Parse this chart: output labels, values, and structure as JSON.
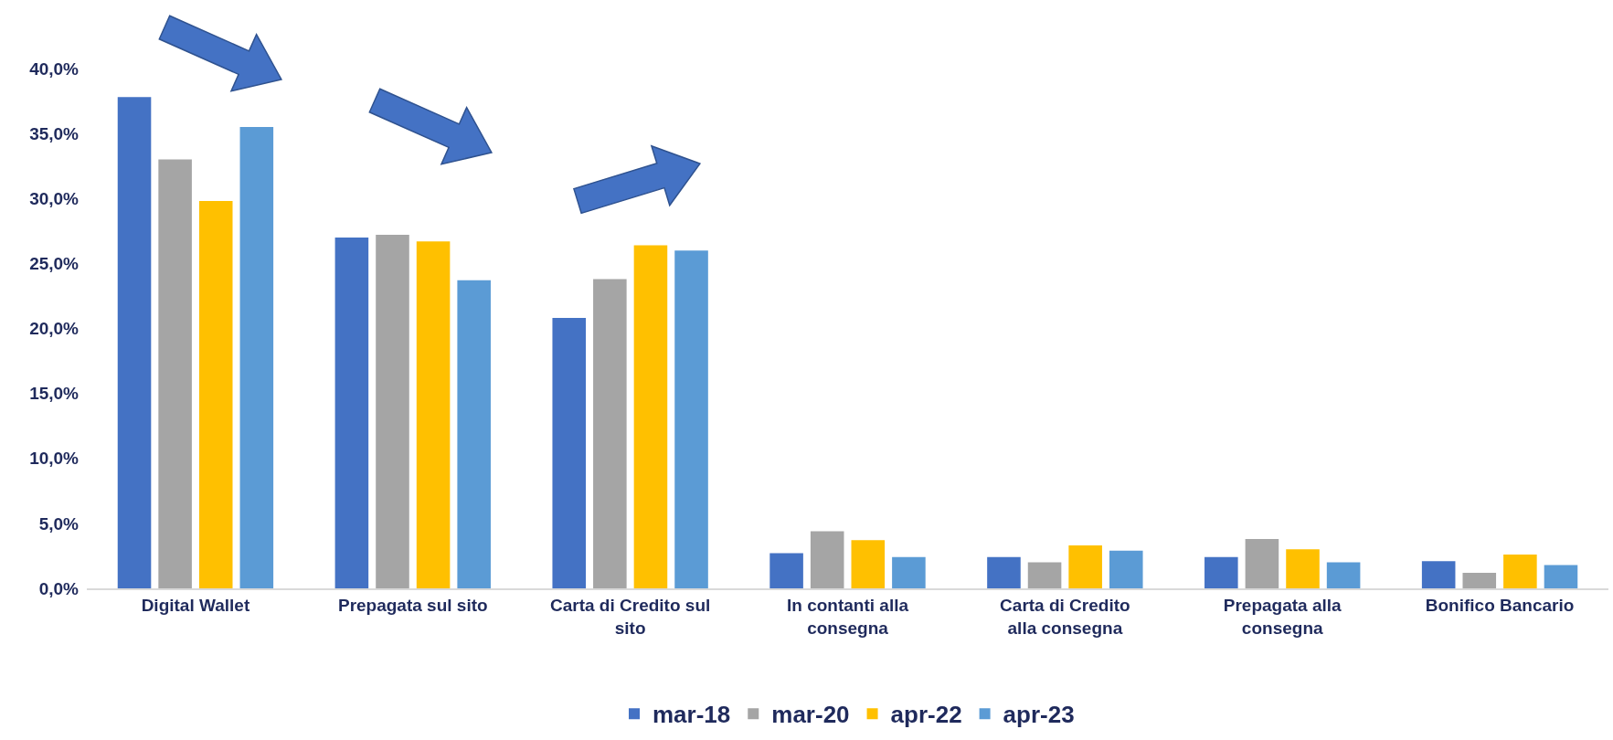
{
  "chart_data": {
    "type": "bar",
    "categories": [
      "Digital Wallet",
      "Prepagata sul sito",
      "Carta di Credito sul sito",
      "In contanti alla consegna",
      "Carta di Credito alla consegna",
      "Prepagata alla consegna",
      "Bonifico Bancario"
    ],
    "series": [
      {
        "name": "mar-18",
        "color": "#4472c4",
        "values": [
          37.8,
          27.0,
          20.8,
          2.7,
          2.4,
          2.4,
          2.1
        ]
      },
      {
        "name": "mar-20",
        "color": "#a5a5a5",
        "values": [
          33.0,
          27.2,
          23.8,
          4.4,
          2.0,
          3.8,
          1.2
        ]
      },
      {
        "name": "apr-22",
        "color": "#ffc000",
        "values": [
          29.8,
          26.7,
          26.4,
          3.7,
          3.3,
          3.0,
          2.6
        ]
      },
      {
        "name": "apr-23",
        "color": "#5b9bd5",
        "values": [
          35.5,
          23.7,
          26.0,
          2.4,
          2.9,
          2.0,
          1.8
        ]
      }
    ],
    "ylim": [
      0,
      40
    ],
    "yticks": [
      {
        "value": 0,
        "label": "0,0%"
      },
      {
        "value": 5,
        "label": "5,0%"
      },
      {
        "value": 10,
        "label": "10,0%"
      },
      {
        "value": 15,
        "label": "15,0%"
      },
      {
        "value": 20,
        "label": "20,0%"
      },
      {
        "value": 25,
        "label": "25,0%"
      },
      {
        "value": 30,
        "label": "30,0%"
      },
      {
        "value": 35,
        "label": "35,0%"
      },
      {
        "value": 40,
        "label": "40,0%"
      }
    ],
    "grid": false,
    "legend": "bottom"
  }
}
